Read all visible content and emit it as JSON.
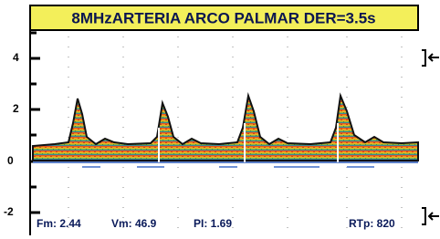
{
  "header": {
    "title": "8MHzARTERIA ARCO PALMAR DER=3.5s"
  },
  "axis": {
    "ticks": [
      "4",
      "2",
      "0",
      "-2"
    ]
  },
  "stats": [
    "Fm: 2.44",
    "Vm: 46.9",
    "PI: 1.69",
    "RTp: 820"
  ]
}
